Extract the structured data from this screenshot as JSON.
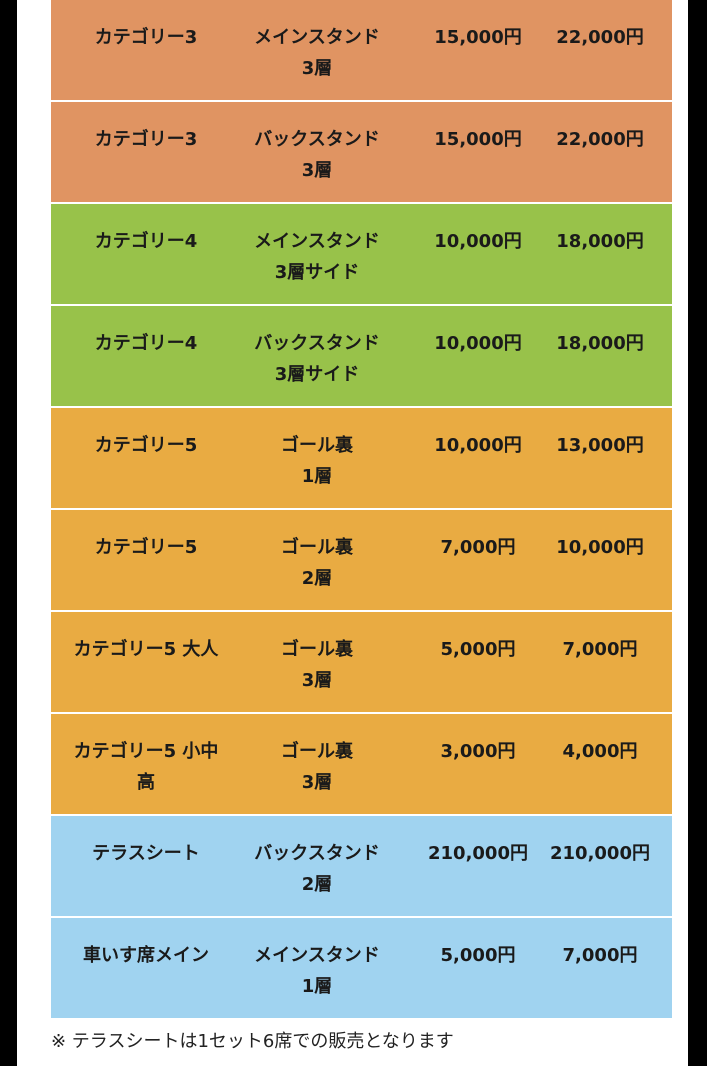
{
  "rows": [
    {
      "category": "カテゴリー3",
      "stand": "メインスタンド\n3層",
      "price_a": "15,000円",
      "price_b": "22,000円",
      "color": "#e09462"
    },
    {
      "category": "カテゴリー3",
      "stand": "バックスタンド\n3層",
      "price_a": "15,000円",
      "price_b": "22,000円",
      "color": "#e09462"
    },
    {
      "category": "カテゴリー4",
      "stand": "メインスタンド\n3層サイド",
      "price_a": "10,000円",
      "price_b": "18,000円",
      "color": "#98c24a"
    },
    {
      "category": "カテゴリー4",
      "stand": "バックスタンド\n3層サイド",
      "price_a": "10,000円",
      "price_b": "18,000円",
      "color": "#98c24a"
    },
    {
      "category": "カテゴリー5",
      "stand": "ゴール裏\n1層",
      "price_a": "10,000円",
      "price_b": "13,000円",
      "color": "#e9ab42"
    },
    {
      "category": "カテゴリー5",
      "stand": "ゴール裏\n2層",
      "price_a": "7,000円",
      "price_b": "10,000円",
      "color": "#e9ab42"
    },
    {
      "category": "カテゴリー5 大人",
      "stand": "ゴール裏\n3層",
      "price_a": "5,000円",
      "price_b": "7,000円",
      "color": "#e9ab42"
    },
    {
      "category": "カテゴリー5 小中\n高",
      "stand": "ゴール裏\n3層",
      "price_a": "3,000円",
      "price_b": "4,000円",
      "color": "#e9ab42"
    },
    {
      "category": "テラスシート",
      "stand": "バックスタンド\n2層",
      "price_a": "210,000円",
      "price_b": "210,000円",
      "color": "#a0d3f0"
    },
    {
      "category": "車いす席メイン",
      "stand": "メインスタンド\n1層",
      "price_a": "5,000円",
      "price_b": "7,000円",
      "color": "#a0d3f0"
    }
  ],
  "note": "※ テラスシートは1セット6席での販売となります"
}
